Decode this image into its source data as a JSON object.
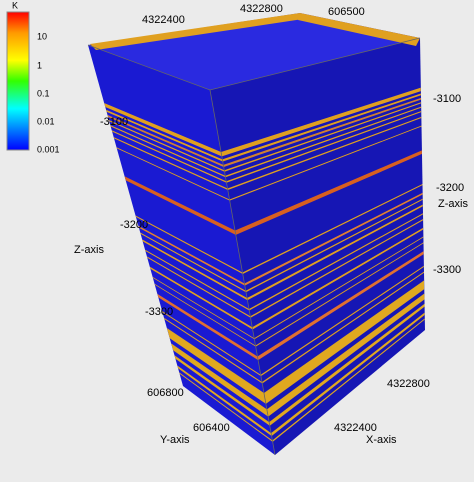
{
  "colorbar": {
    "title": "K",
    "labels": [
      "10",
      "1",
      "0.1",
      "0.01",
      "0.001"
    ]
  },
  "top_axes": {
    "labels": [
      "4322400",
      "4322800",
      "606500"
    ]
  },
  "z_axis_left": {
    "title": "Z-axis",
    "labels": [
      "-3100",
      "-3200",
      "-3300"
    ]
  },
  "z_axis_right": {
    "title": "Z-axis",
    "labels": [
      "-3100",
      "-3200",
      "-3300"
    ]
  },
  "y_axis": {
    "title": "Y-axis",
    "labels": [
      "606800",
      "606400"
    ]
  },
  "x_axis": {
    "title": "X-axis",
    "labels": [
      "4322800",
      "4322400"
    ]
  }
}
